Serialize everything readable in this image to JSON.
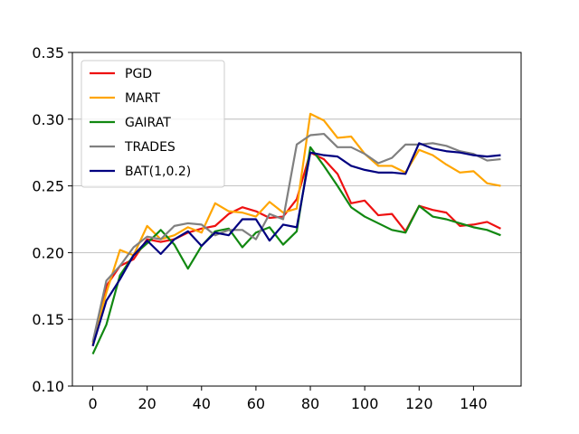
{
  "chart_data": {
    "type": "line",
    "title": "",
    "xlabel": "",
    "ylabel": "",
    "xlim": [
      -7.5,
      157.5
    ],
    "ylim": [
      0.1,
      0.35
    ],
    "x_ticks": [
      0,
      20,
      40,
      60,
      80,
      100,
      120,
      140
    ],
    "y_ticks": [
      0.1,
      0.15,
      0.2,
      0.25,
      0.3,
      0.35
    ],
    "x_tick_labels": [
      "0",
      "20",
      "40",
      "60",
      "80",
      "100",
      "120",
      "140"
    ],
    "y_tick_labels": [
      "0.10",
      "0.15",
      "0.20",
      "0.25",
      "0.30",
      "0.35"
    ],
    "grid": "horizontal",
    "legend_position": "top-left",
    "x": [
      0,
      5,
      10,
      15,
      20,
      25,
      30,
      35,
      40,
      45,
      50,
      55,
      60,
      65,
      70,
      75,
      80,
      85,
      90,
      95,
      100,
      105,
      110,
      115,
      120,
      125,
      130,
      135,
      140,
      145,
      150
    ],
    "series": [
      {
        "name": "PGD",
        "color": "#ee1111",
        "values": [
          0.13,
          0.175,
          0.19,
          0.195,
          0.21,
          0.208,
          0.21,
          0.215,
          0.218,
          0.22,
          0.229,
          0.234,
          0.231,
          0.226,
          0.227,
          0.24,
          0.275,
          0.27,
          0.259,
          0.237,
          0.239,
          0.228,
          0.229,
          0.216,
          0.235,
          0.232,
          0.23,
          0.22,
          0.221,
          0.223,
          0.218
        ]
      },
      {
        "name": "MART",
        "color": "#ffa500",
        "values": [
          0.132,
          0.17,
          0.202,
          0.198,
          0.22,
          0.21,
          0.213,
          0.219,
          0.215,
          0.237,
          0.231,
          0.23,
          0.227,
          0.238,
          0.23,
          0.233,
          0.304,
          0.299,
          0.286,
          0.287,
          0.274,
          0.265,
          0.265,
          0.26,
          0.277,
          0.273,
          0.266,
          0.26,
          0.261,
          0.252,
          0.25
        ]
      },
      {
        "name": "GAIRAT",
        "color": "#118811",
        "values": [
          0.124,
          0.146,
          0.183,
          0.198,
          0.207,
          0.217,
          0.206,
          0.188,
          0.205,
          0.216,
          0.218,
          0.204,
          0.215,
          0.219,
          0.206,
          0.216,
          0.279,
          0.265,
          0.25,
          0.234,
          0.227,
          0.222,
          0.217,
          0.215,
          0.235,
          0.227,
          0.225,
          0.222,
          0.219,
          0.217,
          0.213
        ]
      },
      {
        "name": "TRADES",
        "color": "#808080",
        "values": [
          0.133,
          0.179,
          0.19,
          0.204,
          0.212,
          0.21,
          0.22,
          0.222,
          0.221,
          0.213,
          0.217,
          0.217,
          0.21,
          0.229,
          0.225,
          0.281,
          0.288,
          0.289,
          0.279,
          0.279,
          0.274,
          0.267,
          0.271,
          0.281,
          0.281,
          0.282,
          0.28,
          0.276,
          0.274,
          0.269,
          0.27
        ]
      },
      {
        "name": "BAT(1,0.2)",
        "color": "#000080",
        "values": [
          0.13,
          0.164,
          0.18,
          0.198,
          0.209,
          0.199,
          0.21,
          0.216,
          0.205,
          0.215,
          0.213,
          0.225,
          0.225,
          0.209,
          0.221,
          0.219,
          0.275,
          0.273,
          0.272,
          0.265,
          0.262,
          0.26,
          0.26,
          0.259,
          0.282,
          0.278,
          0.276,
          0.275,
          0.273,
          0.272,
          0.273
        ]
      }
    ]
  }
}
